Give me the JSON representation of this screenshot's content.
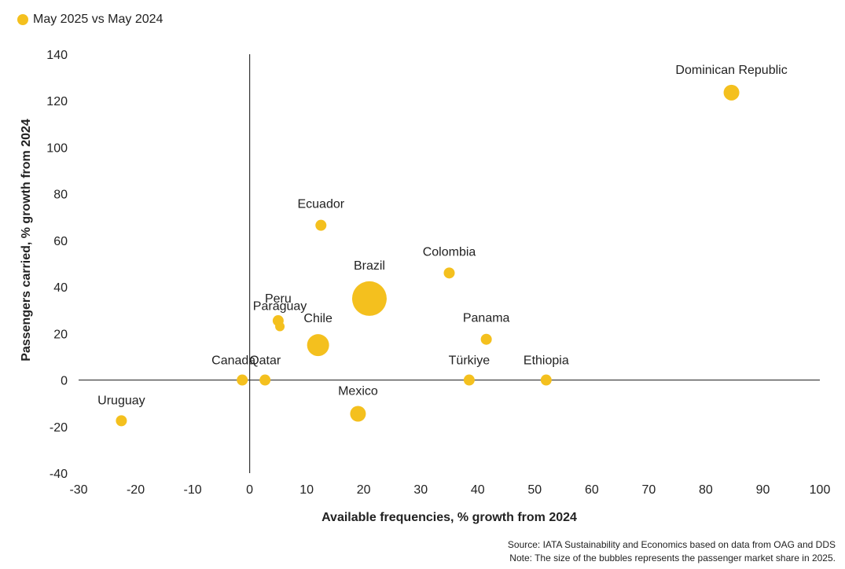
{
  "legend": {
    "label": "May 2025 vs May 2024",
    "color": "#F4C01E"
  },
  "footnotes": {
    "source": "Source: IATA Sustainability and Economics based on data from OAG and DDS",
    "note": "Note: The size of the bubbles represents the passenger market share in 2025."
  },
  "chart_data": {
    "type": "scatter",
    "bubble": true,
    "xlabel": "Available frequencies, % growth from 2024",
    "ylabel": "Passengers carried, % growth from 2024",
    "xlim": [
      -30,
      100
    ],
    "ylim": [
      -40,
      140
    ],
    "xticks": [
      -30,
      -20,
      -10,
      0,
      10,
      20,
      30,
      40,
      50,
      60,
      70,
      80,
      90,
      100
    ],
    "yticks": [
      -40,
      -20,
      0,
      20,
      40,
      60,
      80,
      100,
      120,
      140
    ],
    "grid": false,
    "legend_position": "top-left",
    "series": [
      {
        "name": "May 2025 vs May 2024",
        "color": "#F4C01E",
        "points": [
          {
            "label": "Dominican Republic",
            "x": 84.5,
            "y": 123.5,
            "size": "medium"
          },
          {
            "label": "Ecuador",
            "x": 12.5,
            "y": 66.5,
            "size": "small"
          },
          {
            "label": "Colombia",
            "x": 35.0,
            "y": 46.0,
            "size": "small"
          },
          {
            "label": "Brazil",
            "x": 21.0,
            "y": 35.0,
            "size": "xlarge"
          },
          {
            "label": "Peru",
            "x": 5.0,
            "y": 25.5,
            "size": "small"
          },
          {
            "label": "Paraguay",
            "x": 5.3,
            "y": 23.0,
            "size": "tiny"
          },
          {
            "label": "Chile",
            "x": 12.0,
            "y": 15.0,
            "size": "large"
          },
          {
            "label": "Panama",
            "x": 41.5,
            "y": 17.5,
            "size": "small"
          },
          {
            "label": "Canada",
            "x": -1.3,
            "y": 0,
            "size": "small"
          },
          {
            "label": "Qatar",
            "x": 2.7,
            "y": 0,
            "size": "small"
          },
          {
            "label": "Türkiye",
            "x": 38.5,
            "y": 0,
            "size": "small"
          },
          {
            "label": "Ethiopia",
            "x": 52.0,
            "y": 0,
            "size": "small"
          },
          {
            "label": "Mexico",
            "x": 19.0,
            "y": -14.5,
            "size": "medium"
          },
          {
            "label": "Uruguay",
            "x": -22.5,
            "y": -17.5,
            "size": "small"
          }
        ]
      }
    ]
  }
}
